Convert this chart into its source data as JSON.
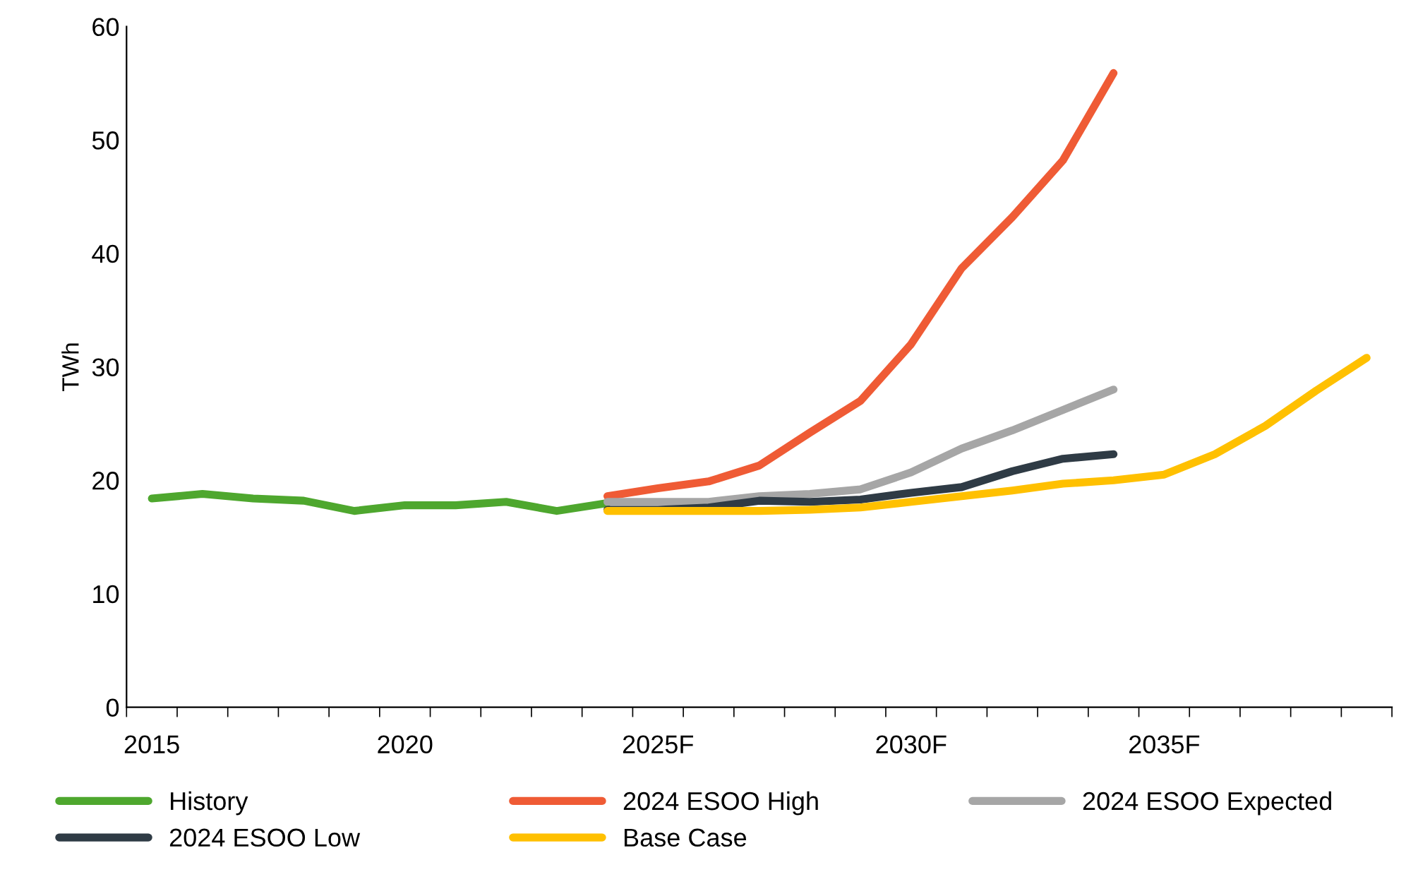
{
  "chart_data": {
    "type": "line",
    "ylabel": "TWh",
    "categories": [
      "2015",
      null,
      null,
      null,
      null,
      "2020",
      null,
      null,
      null,
      null,
      "2025F",
      null,
      null,
      null,
      null,
      "2030F",
      null,
      null,
      null,
      null,
      "2035F",
      null,
      null,
      null,
      null
    ],
    "ylim": [
      0,
      60
    ],
    "yticks": [
      0,
      10,
      20,
      30,
      40,
      50,
      60
    ],
    "grid": false,
    "legend": "bottom",
    "marker": "none",
    "line_style": "solid",
    "series": [
      {
        "name": "History",
        "color": "#4ea72e",
        "values": [
          18.4,
          18.8,
          18.4,
          18.2,
          17.3,
          17.8,
          17.8,
          18.1,
          17.3,
          18.0,
          null,
          null,
          null,
          null,
          null,
          null,
          null,
          null,
          null,
          null,
          null,
          null,
          null,
          null,
          null
        ]
      },
      {
        "name": "2024 ESOO High",
        "color": "#ef5b35",
        "values": [
          null,
          null,
          null,
          null,
          null,
          null,
          null,
          null,
          null,
          18.6,
          19.3,
          19.9,
          21.3,
          24.2,
          27.0,
          32.0,
          38.7,
          43.2,
          48.2,
          55.9,
          null,
          null,
          null,
          null,
          null
        ]
      },
      {
        "name": "2024 ESOO Expected",
        "color": "#a6a6a6",
        "values": [
          null,
          null,
          null,
          null,
          null,
          null,
          null,
          null,
          null,
          18.1,
          18.1,
          18.1,
          18.6,
          18.8,
          19.2,
          20.7,
          22.8,
          24.4,
          26.2,
          28.0,
          null,
          null,
          null,
          null,
          null
        ]
      },
      {
        "name": "2024 ESOO Low",
        "color": "#2f3b45",
        "values": [
          null,
          null,
          null,
          null,
          null,
          null,
          null,
          null,
          null,
          17.4,
          17.4,
          17.6,
          18.2,
          18.1,
          18.3,
          18.9,
          19.4,
          20.8,
          21.9,
          22.3,
          null,
          null,
          null,
          null,
          null
        ]
      },
      {
        "name": "Base Case",
        "color": "#ffc000",
        "values": [
          null,
          null,
          null,
          null,
          null,
          null,
          null,
          null,
          null,
          17.3,
          17.3,
          17.3,
          17.3,
          17.4,
          17.6,
          18.1,
          18.6,
          19.1,
          19.7,
          20.0,
          20.5,
          22.3,
          24.8,
          27.9,
          30.8
        ]
      }
    ]
  }
}
